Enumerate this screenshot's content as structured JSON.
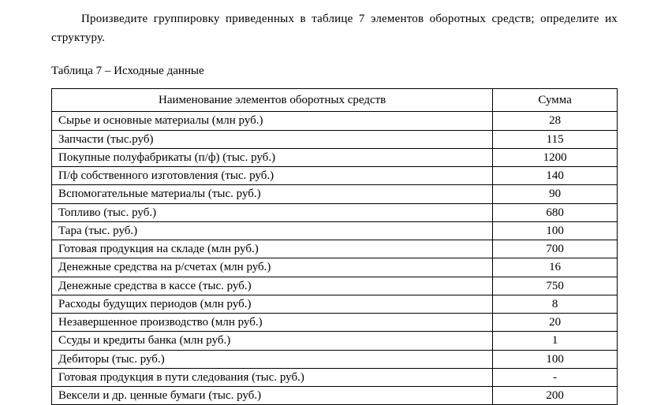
{
  "paragraph": "Произведите группировку приведенных в таблице 7  элементов оборотных средств; определите их структуру.",
  "table_caption": "Таблица 7 – Исходные данные",
  "table": {
    "type": "table",
    "columns": [
      {
        "label": "Наименование элементов оборотных средств",
        "width": "78%",
        "align": "left"
      },
      {
        "label": "Сумма",
        "width": "22%",
        "align": "center"
      }
    ],
    "rows": [
      [
        "Сырье и основные материалы (млн руб.)",
        "28"
      ],
      [
        "Запчасти (тыс.руб)",
        "115"
      ],
      [
        "Покупные полуфабрикаты (п/ф) (тыс. руб.)",
        "1200"
      ],
      [
        "П/ф собственного изготовления (тыс. руб.)",
        "140"
      ],
      [
        "Вспомогательные материалы (тыс. руб.)",
        "90"
      ],
      [
        "Топливо (тыс. руб.)",
        "680"
      ],
      [
        "Тара (тыс. руб.)",
        "100"
      ],
      [
        "Готовая продукция на складе (млн руб.)",
        "700"
      ],
      [
        "Денежные средства на р/счетах (млн руб.)",
        "16"
      ],
      [
        "Денежные средства в кассе (тыс. руб.)",
        "750"
      ],
      [
        "Расходы будущих периодов (млн руб.)",
        "8"
      ],
      [
        "Незавершенное производство (млн руб.)",
        "20"
      ],
      [
        "Ссуды и кредиты банка (млн руб.)",
        "1"
      ],
      [
        "Дебиторы (тыс. руб.)",
        "100"
      ],
      [
        "Готовая продукция в пути следования (тыс. руб.)",
        "-"
      ],
      [
        "Вексели и др. ценные бумаги (тыс. руб.)",
        "200"
      ]
    ],
    "border_color": "#000000",
    "header_fontweight": "normal",
    "font_family": "Times New Roman",
    "font_size_pt": 11
  }
}
